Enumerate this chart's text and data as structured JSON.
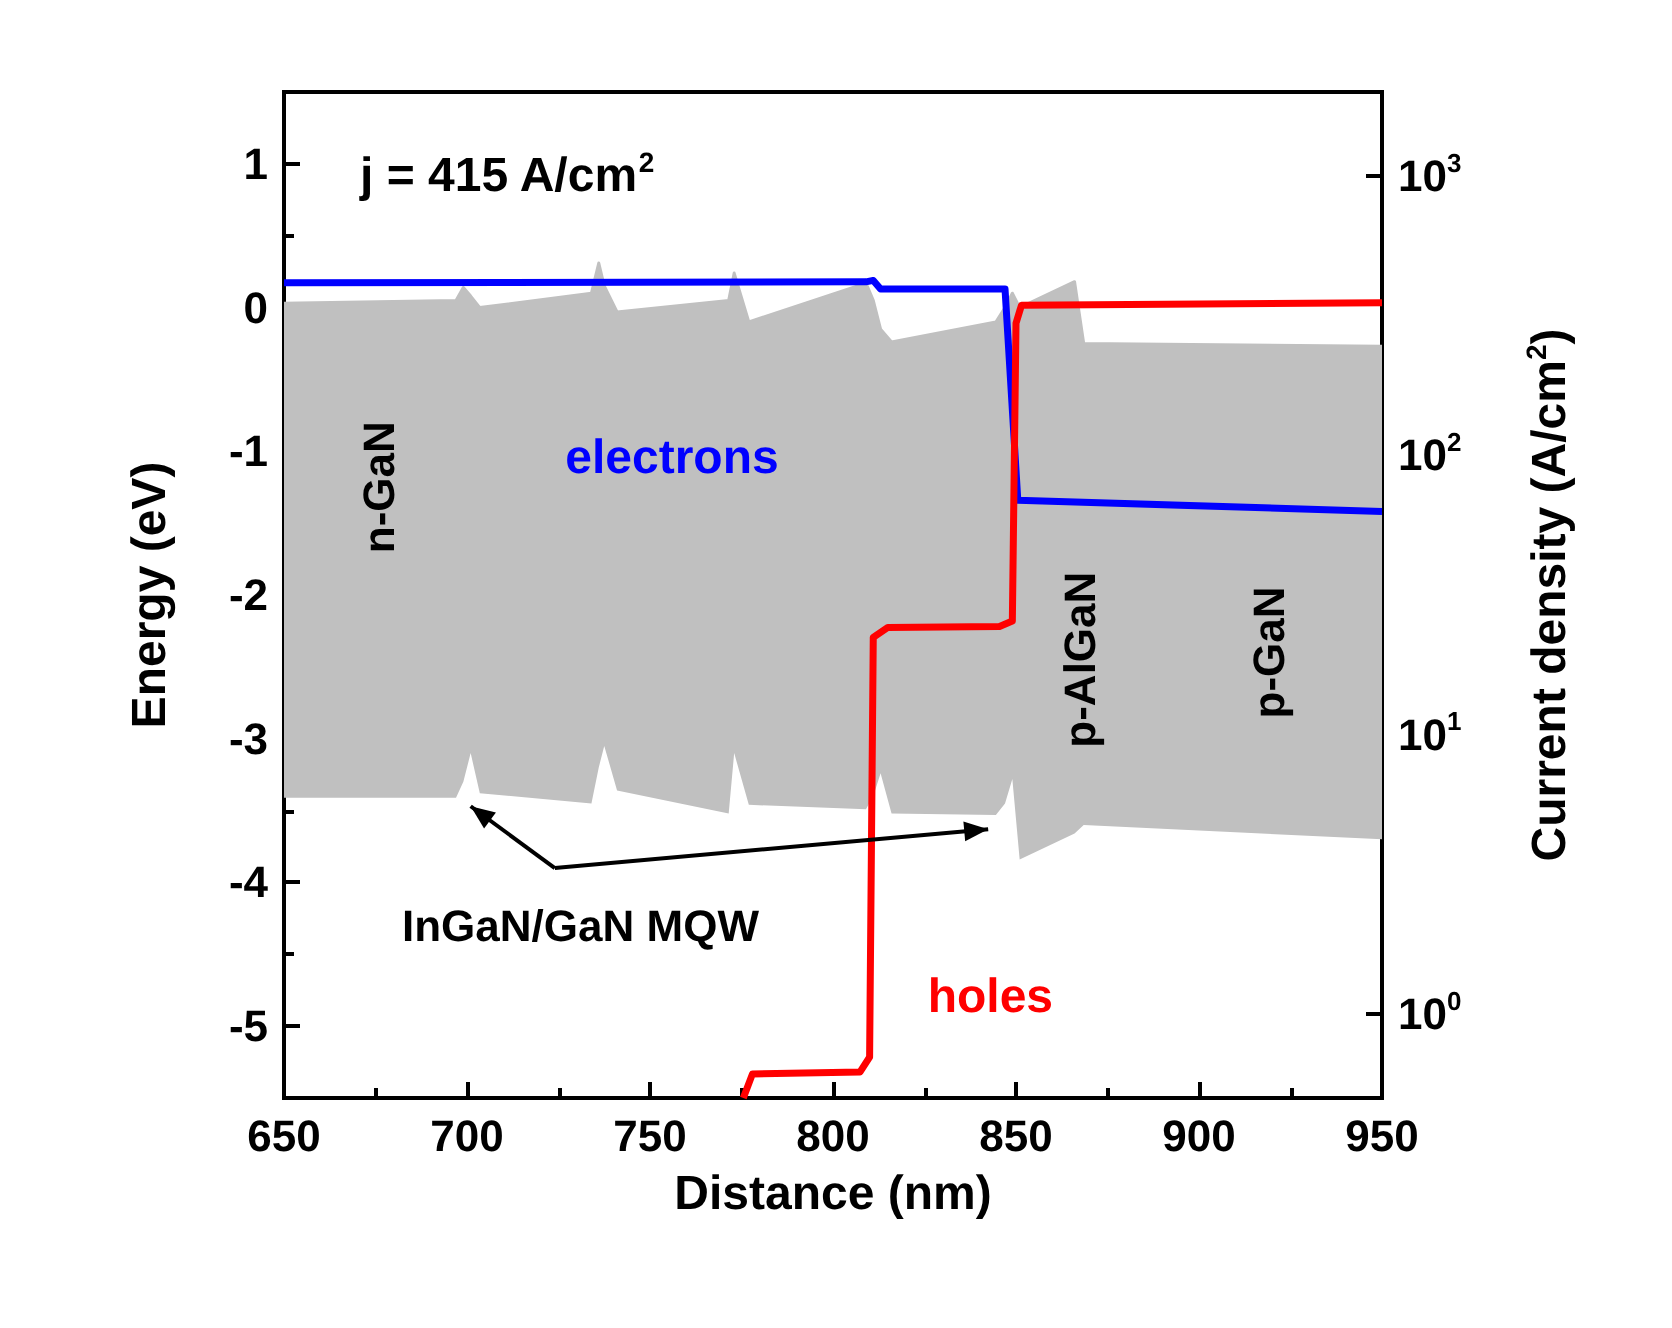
{
  "chart_data": {
    "type": "line",
    "xlabel": "Distance (nm)",
    "ylabel": "Energy (eV)",
    "y2label": "Current density (A/cm$^{2}$)",
    "xlim": [
      650,
      950
    ],
    "xticks": [
      650,
      700,
      750,
      800,
      850,
      900,
      950
    ],
    "ylim": [
      -5.5,
      1.5
    ],
    "yticks": [
      -5,
      -4,
      -3,
      -2,
      -1,
      0,
      1
    ],
    "y2lim": [
      0.5,
      2000
    ],
    "y2ticks": [
      {
        "value": 1,
        "label": "10$^{0}$"
      },
      {
        "value": 10,
        "label": "10$^{1}$"
      },
      {
        "value": 100,
        "label": "10$^{2}$"
      },
      {
        "value": 1000,
        "label": "10$^{3}$"
      }
    ],
    "log": "y2",
    "grid": false,
    "annotations": [
      "j = 415 A/cm$^{2}$",
      "n-GaN",
      "p-AlGaN",
      "p-GaN",
      "InGaN/GaN MQW"
    ],
    "series": [
      {
        "type": "line",
        "color": "#c0c0c0",
        "x": [
          650,
          697,
          699,
          701,
          703.5,
          734,
          736,
          737.5,
          741,
          771.5,
          773,
          777,
          809,
          811,
          813,
          816,
          844.5,
          847,
          849,
          851,
          866,
          868.5,
          950
        ],
        "values": [
          0.03,
          0.05,
          0.14,
          0.08,
          0.0,
          0.1,
          0.31,
          0.15,
          -0.03,
          0.05,
          0.24,
          -0.1,
          0.17,
          0.05,
          -0.15,
          -0.24,
          -0.1,
          0.0,
          0.1,
          0.0,
          0.18,
          -0.25,
          -0.27
        ],
        "upper": [
          0.03,
          0.05,
          0.14,
          0.08,
          0.0,
          0.1,
          0.31,
          0.15,
          -0.03,
          0.05,
          0.24,
          -0.1,
          0.17,
          0.05,
          -0.15,
          -0.24,
          -0.1,
          0.0,
          0.1,
          0.0,
          0.18,
          -0.25,
          -0.27
        ],
        "lower": [
          -3.41,
          -3.41,
          -3.3,
          -3.1,
          -3.38,
          -3.45,
          -3.2,
          -3.05,
          -3.36,
          -3.52,
          -3.1,
          -3.46,
          -3.49,
          -3.4,
          -3.24,
          -3.52,
          -3.53,
          -3.45,
          -3.28,
          -3.84,
          -3.66,
          -3.6,
          -3.7
        ]
      },
      {
        "name": "electrons",
        "color": "#0000ff",
        "axis": "y2",
        "x": [
          650,
          809,
          811,
          813,
          847,
          850.5,
          950
        ],
        "values": [
          415,
          418,
          423,
          394,
          394,
          69,
          63
        ]
      },
      {
        "name": "holes",
        "color": "#ff0000",
        "axis": "y2",
        "x": [
          775.5,
          778,
          807.4,
          810,
          811,
          815,
          845.5,
          849,
          850,
          851.5,
          950
        ],
        "values": [
          0.5,
          0.61,
          0.62,
          0.7,
          22.3,
          24.2,
          24.4,
          25.5,
          297,
          345,
          352
        ]
      }
    ]
  }
}
